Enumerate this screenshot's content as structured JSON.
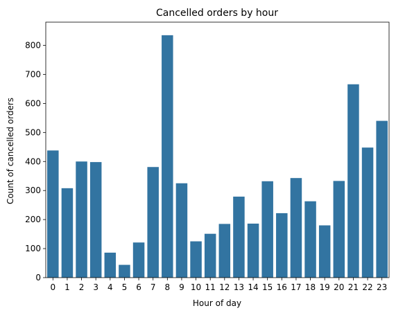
{
  "chart_data": {
    "type": "bar",
    "title": "Cancelled orders by hour",
    "xlabel": "Hour of day",
    "ylabel": "Count of cancelled orders",
    "categories": [
      "0",
      "1",
      "2",
      "3",
      "4",
      "5",
      "6",
      "7",
      "8",
      "9",
      "10",
      "11",
      "12",
      "13",
      "14",
      "15",
      "16",
      "17",
      "18",
      "19",
      "20",
      "21",
      "22",
      "23"
    ],
    "values": [
      438,
      308,
      400,
      398,
      86,
      44,
      121,
      381,
      835,
      325,
      125,
      151,
      185,
      279,
      186,
      332,
      222,
      343,
      263,
      180,
      333,
      666,
      448,
      540
    ],
    "ylim": [
      0,
      880
    ],
    "yticks": [
      0,
      100,
      200,
      300,
      400,
      500,
      600,
      700,
      800
    ],
    "bar_color": "#3274a1",
    "grid": false,
    "legend": "none"
  }
}
